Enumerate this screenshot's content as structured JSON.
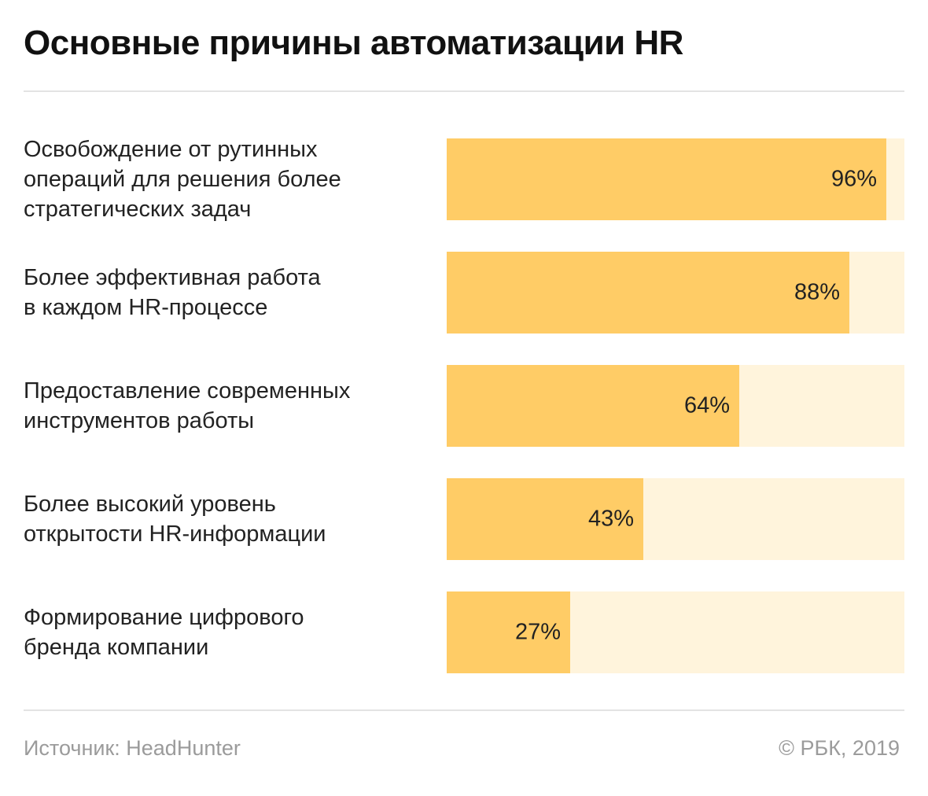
{
  "chart_data": {
    "type": "bar",
    "orientation": "horizontal",
    "title": "Основные причины автоматизации HR",
    "categories": [
      [
        "Освобождение от рутинных",
        "операций для решения более",
        "стратегических задач"
      ],
      [
        "Более эффективная работа",
        "в каждом HR-процессе"
      ],
      [
        "Предоставление современных",
        "инструментов работы"
      ],
      [
        "Более высокий уровень",
        "открытости HR-информации"
      ],
      [
        "Формирование цифрового",
        "бренда компании"
      ]
    ],
    "values": [
      96,
      88,
      64,
      43,
      27
    ],
    "value_labels": [
      "96%",
      "88%",
      "64%",
      "43%",
      "27%"
    ],
    "xlim": [
      0,
      100
    ],
    "grid": false,
    "colors": {
      "bar": "#ffcc66",
      "track": "#fff4dc"
    }
  },
  "footer": {
    "source": "Источник: HeadHunter",
    "copyright": "© РБК, 2019"
  }
}
